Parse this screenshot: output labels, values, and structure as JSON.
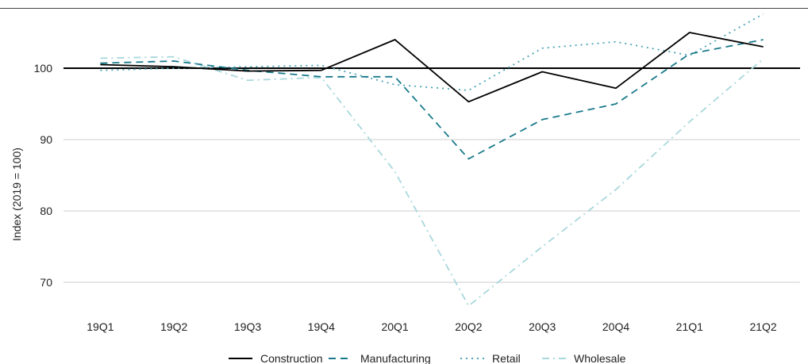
{
  "chart_data": {
    "type": "line",
    "title": "",
    "xlabel": "",
    "ylabel": "Index (2019 = 100)",
    "categories": [
      "19Q1",
      "19Q2",
      "19Q3",
      "19Q4",
      "20Q1",
      "20Q2",
      "20Q3",
      "20Q4",
      "21Q1",
      "21Q2"
    ],
    "ylim": [
      66,
      108
    ],
    "yticks": [
      70,
      80,
      90,
      100
    ],
    "reference_line": 100,
    "grid": "horizontal",
    "legend_position": "bottom",
    "series": [
      {
        "name": "Construction",
        "color": "#000000",
        "dash": "solid",
        "values": [
          100.5,
          100.2,
          99.6,
          99.7,
          104.0,
          95.3,
          99.5,
          97.2,
          105.0,
          103.0
        ]
      },
      {
        "name": "Manufacturing",
        "color": "#1a7a8c",
        "dash": "dashed",
        "values": [
          100.7,
          101.0,
          99.7,
          98.8,
          98.8,
          87.3,
          92.8,
          95.0,
          102.0,
          104.0
        ]
      },
      {
        "name": "Retail",
        "color": "#4aa3b5",
        "dash": "dotted",
        "values": [
          99.7,
          100.0,
          100.2,
          100.4,
          97.7,
          96.9,
          102.8,
          103.7,
          101.8,
          107.6
        ]
      },
      {
        "name": "Wholesale",
        "color": "#a8d8dc",
        "dash": "dashdot",
        "values": [
          101.4,
          101.6,
          98.3,
          98.7,
          85.5,
          66.7,
          75.0,
          83.0,
          92.5,
          101.3
        ]
      }
    ]
  }
}
